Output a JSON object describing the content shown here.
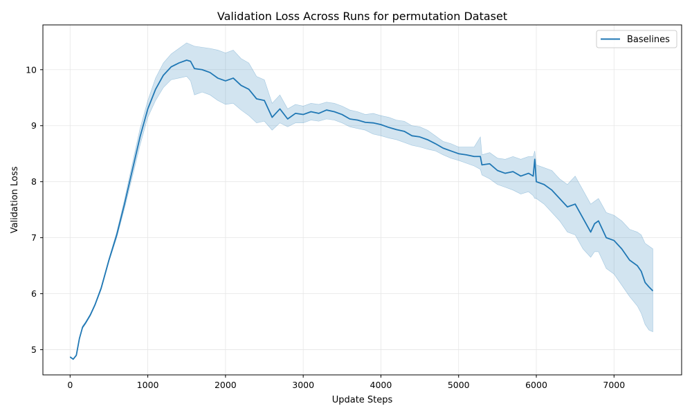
{
  "chart_data": {
    "type": "line",
    "title": "Validation Loss Across Runs for permutation Dataset",
    "xlabel": "Update Steps",
    "ylabel": "Validation Loss",
    "xlim": [
      -350,
      7870
    ],
    "ylim": [
      4.55,
      10.8
    ],
    "xticks": [
      0,
      1000,
      2000,
      3000,
      4000,
      5000,
      6000,
      7000
    ],
    "xtick_labels": [
      "0",
      "1000",
      "2000",
      "3000",
      "4000",
      "5000",
      "6000",
      "7000"
    ],
    "yticks": [
      5,
      6,
      7,
      8,
      9,
      10
    ],
    "ytick_labels": [
      "5",
      "6",
      "7",
      "8",
      "9",
      "10"
    ],
    "grid": true,
    "legend": {
      "position": "top-right",
      "entries": [
        "Baselines"
      ]
    },
    "colors": {
      "line": "#1f77b4",
      "band": "#1f77b4"
    },
    "series": [
      {
        "name": "Baselines",
        "x": [
          0,
          40,
          80,
          120,
          160,
          200,
          260,
          320,
          400,
          500,
          600,
          700,
          800,
          900,
          1000,
          1100,
          1200,
          1300,
          1400,
          1500,
          1550,
          1600,
          1700,
          1800,
          1900,
          2000,
          2100,
          2200,
          2300,
          2400,
          2500,
          2600,
          2700,
          2800,
          2900,
          3000,
          3100,
          3200,
          3300,
          3400,
          3500,
          3600,
          3700,
          3800,
          3900,
          4000,
          4100,
          4200,
          4300,
          4400,
          4500,
          4600,
          4700,
          4800,
          4900,
          5000,
          5100,
          5200,
          5280,
          5300,
          5400,
          5500,
          5600,
          5700,
          5800,
          5900,
          5960,
          5980,
          6000,
          6100,
          6200,
          6300,
          6400,
          6500,
          6600,
          6700,
          6750,
          6800,
          6900,
          7000,
          7100,
          7200,
          7300,
          7350,
          7400,
          7450,
          7500
        ],
        "y": [
          4.87,
          4.83,
          4.9,
          5.2,
          5.4,
          5.48,
          5.62,
          5.8,
          6.1,
          6.6,
          7.05,
          7.6,
          8.2,
          8.8,
          9.3,
          9.65,
          9.9,
          10.05,
          10.12,
          10.17,
          10.15,
          10.02,
          10.0,
          9.95,
          9.85,
          9.8,
          9.85,
          9.72,
          9.65,
          9.48,
          9.45,
          9.15,
          9.3,
          9.12,
          9.22,
          9.2,
          9.25,
          9.22,
          9.28,
          9.25,
          9.2,
          9.12,
          9.1,
          9.06,
          9.05,
          9.02,
          8.97,
          8.93,
          8.9,
          8.82,
          8.8,
          8.75,
          8.68,
          8.6,
          8.55,
          8.5,
          8.48,
          8.45,
          8.45,
          8.3,
          8.32,
          8.2,
          8.15,
          8.18,
          8.1,
          8.15,
          8.1,
          8.4,
          8.0,
          7.95,
          7.85,
          7.7,
          7.55,
          7.6,
          7.35,
          7.1,
          7.25,
          7.3,
          7.0,
          6.95,
          6.8,
          6.6,
          6.5,
          6.4,
          6.2,
          6.12,
          6.05
        ],
        "lower": [
          4.86,
          4.82,
          4.89,
          5.19,
          5.38,
          5.46,
          5.6,
          5.78,
          6.07,
          6.57,
          7.0,
          7.52,
          8.08,
          8.65,
          9.15,
          9.45,
          9.68,
          9.82,
          9.85,
          9.88,
          9.8,
          9.55,
          9.6,
          9.55,
          9.45,
          9.38,
          9.4,
          9.28,
          9.18,
          9.05,
          9.08,
          8.92,
          9.05,
          8.98,
          9.05,
          9.05,
          9.1,
          9.08,
          9.12,
          9.1,
          9.05,
          8.98,
          8.95,
          8.92,
          8.85,
          8.82,
          8.78,
          8.75,
          8.7,
          8.65,
          8.62,
          8.58,
          8.55,
          8.48,
          8.42,
          8.38,
          8.33,
          8.28,
          8.22,
          8.12,
          8.05,
          7.95,
          7.9,
          7.85,
          7.78,
          7.82,
          7.75,
          7.7,
          7.7,
          7.6,
          7.45,
          7.3,
          7.1,
          7.05,
          6.8,
          6.65,
          6.75,
          6.75,
          6.45,
          6.35,
          6.15,
          5.95,
          5.78,
          5.65,
          5.45,
          5.35,
          5.32
        ],
        "upper": [
          4.88,
          4.84,
          4.91,
          5.21,
          5.42,
          5.5,
          5.64,
          5.82,
          6.13,
          6.63,
          7.1,
          7.68,
          8.32,
          8.95,
          9.45,
          9.85,
          10.12,
          10.28,
          10.38,
          10.48,
          10.45,
          10.42,
          10.4,
          10.38,
          10.35,
          10.3,
          10.35,
          10.2,
          10.12,
          9.88,
          9.82,
          9.4,
          9.55,
          9.3,
          9.38,
          9.35,
          9.4,
          9.38,
          9.42,
          9.4,
          9.35,
          9.28,
          9.25,
          9.2,
          9.22,
          9.18,
          9.15,
          9.1,
          9.08,
          9.0,
          8.98,
          8.92,
          8.82,
          8.72,
          8.68,
          8.62,
          8.62,
          8.62,
          8.8,
          8.48,
          8.52,
          8.42,
          8.4,
          8.45,
          8.4,
          8.45,
          8.45,
          8.55,
          8.3,
          8.25,
          8.2,
          8.05,
          7.95,
          8.1,
          7.85,
          7.6,
          7.65,
          7.7,
          7.45,
          7.4,
          7.3,
          7.15,
          7.1,
          7.05,
          6.9,
          6.85,
          6.8
        ]
      }
    ]
  }
}
